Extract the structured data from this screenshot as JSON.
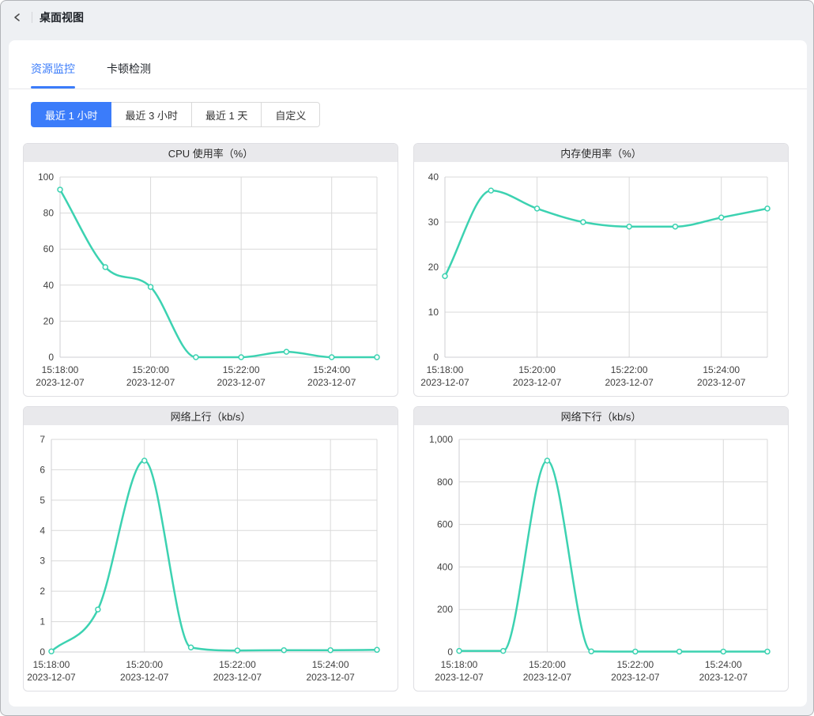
{
  "header": {
    "title": "桌面视图"
  },
  "tabs": [
    {
      "label": "资源监控",
      "active": true
    },
    {
      "label": "卡顿检测",
      "active": false
    }
  ],
  "time_range": {
    "options": [
      {
        "label": "最近 1 小时",
        "active": true
      },
      {
        "label": "最近 3 小时",
        "active": false
      },
      {
        "label": "最近 1 天",
        "active": false
      },
      {
        "label": "自定义",
        "active": false
      }
    ]
  },
  "colors": {
    "accent_blue": "#3b7cfa",
    "line_teal": "#3cd2b1",
    "grid_line": "#d9d9d9",
    "axis_text": "#404040",
    "card_header_bg": "#e9e9ec",
    "page_bg": "#eef0f3"
  },
  "chart_data": [
    {
      "type": "line",
      "title": "CPU 使用率（%）",
      "x": [
        "15:18:00",
        "15:19:00",
        "15:20:00",
        "15:21:00",
        "15:22:00",
        "15:23:00",
        "15:24:00",
        "15:25:00"
      ],
      "date_label": "2023-12-07",
      "x_tick_indices": [
        0,
        2,
        4,
        6
      ],
      "values": [
        93,
        50,
        39,
        0,
        0,
        3,
        0,
        0
      ],
      "ylim": [
        0,
        100
      ],
      "y_ticks": [
        0,
        20,
        40,
        60,
        80,
        100
      ],
      "xlabel": "",
      "ylabel": "",
      "grid": true,
      "legend": "none"
    },
    {
      "type": "line",
      "title": "内存使用率（%）",
      "x": [
        "15:18:00",
        "15:19:00",
        "15:20:00",
        "15:21:00",
        "15:22:00",
        "15:23:00",
        "15:24:00",
        "15:25:00"
      ],
      "date_label": "2023-12-07",
      "x_tick_indices": [
        0,
        2,
        4,
        6
      ],
      "values": [
        18,
        37,
        33,
        30,
        29,
        29,
        31,
        33
      ],
      "ylim": [
        0,
        40
      ],
      "y_ticks": [
        0,
        10,
        20,
        30,
        40
      ],
      "xlabel": "",
      "ylabel": "",
      "grid": true,
      "legend": "none"
    },
    {
      "type": "line",
      "title": "网络上行（kb/s）",
      "x": [
        "15:18:00",
        "15:19:00",
        "15:20:00",
        "15:21:00",
        "15:22:00",
        "15:23:00",
        "15:24:00",
        "15:25:00"
      ],
      "date_label": "2023-12-07",
      "x_tick_indices": [
        0,
        2,
        4,
        6
      ],
      "values": [
        0.02,
        1.4,
        6.3,
        0.15,
        0.05,
        0.06,
        0.06,
        0.07
      ],
      "ylim": [
        0,
        7
      ],
      "y_ticks": [
        0,
        1,
        2,
        3,
        4,
        5,
        6,
        7
      ],
      "xlabel": "",
      "ylabel": "",
      "grid": true,
      "legend": "none"
    },
    {
      "type": "line",
      "title": "网络下行（kb/s）",
      "x": [
        "15:18:00",
        "15:19:00",
        "15:20:00",
        "15:21:00",
        "15:22:00",
        "15:23:00",
        "15:24:00",
        "15:25:00"
      ],
      "date_label": "2023-12-07",
      "x_tick_indices": [
        0,
        2,
        4,
        6
      ],
      "values": [
        5,
        5,
        900,
        3,
        2,
        2,
        2,
        2
      ],
      "ylim": [
        0,
        1000
      ],
      "y_ticks": [
        0,
        200,
        400,
        600,
        800,
        1000
      ],
      "xlabel": "",
      "ylabel": "",
      "grid": true,
      "legend": "none"
    }
  ]
}
